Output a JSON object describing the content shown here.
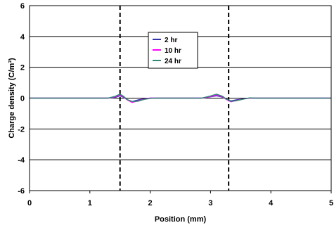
{
  "chart_data": {
    "type": "line",
    "title": "",
    "xlabel": "Position (mm)",
    "ylabel": "Charge density (C/m³)",
    "xlim": [
      0,
      5
    ],
    "ylim": [
      -6,
      6
    ],
    "xticks": [
      0,
      1,
      2,
      3,
      4,
      5
    ],
    "yticks": [
      -6,
      -4,
      -2,
      0,
      2,
      4,
      6
    ],
    "xtick_labels": [
      "0",
      "1",
      "2",
      "3",
      "4",
      "5"
    ],
    "ytick_labels": [
      "-6",
      "-4",
      "-2",
      "0",
      "2",
      "4",
      "6"
    ],
    "grid": "horizontal",
    "legend_position": "center-top",
    "vlines": [
      1.5,
      3.3
    ],
    "series": [
      {
        "name": "2 hr",
        "color": "#3333aa",
        "x": [
          0,
          1.3,
          1.42,
          1.5,
          1.56,
          1.62,
          1.7,
          1.8,
          1.9,
          2.0,
          2.1,
          2.5,
          2.85,
          3.0,
          3.1,
          3.2,
          3.26,
          3.34,
          3.42,
          3.55,
          3.65,
          3.75,
          5
        ],
        "y": [
          0,
          0,
          0.05,
          0.15,
          0.05,
          -0.1,
          -0.22,
          -0.12,
          -0.04,
          0,
          0,
          0,
          0,
          0.08,
          0.15,
          0.06,
          -0.06,
          -0.18,
          -0.12,
          -0.04,
          0,
          0,
          0
        ]
      },
      {
        "name": "10 hr",
        "color": "#ff00ff",
        "x": [
          0,
          1.3,
          1.42,
          1.5,
          1.56,
          1.62,
          1.7,
          1.8,
          1.9,
          2.0,
          2.1,
          2.5,
          2.85,
          3.0,
          3.1,
          3.2,
          3.26,
          3.34,
          3.42,
          3.55,
          3.65,
          3.75,
          5
        ],
        "y": [
          0,
          0,
          0.08,
          0.2,
          0.08,
          -0.12,
          -0.28,
          -0.18,
          -0.06,
          0,
          0,
          0,
          0,
          0.1,
          0.2,
          0.08,
          -0.08,
          -0.24,
          -0.16,
          -0.05,
          0,
          0,
          0
        ]
      },
      {
        "name": "24 hr",
        "color": "#2e8b72",
        "x": [
          0,
          1.3,
          1.42,
          1.5,
          1.56,
          1.62,
          1.7,
          1.8,
          1.9,
          2.0,
          2.1,
          2.5,
          2.85,
          3.0,
          3.1,
          3.2,
          3.26,
          3.34,
          3.42,
          3.55,
          3.65,
          3.75,
          5
        ],
        "y": [
          0,
          0,
          0.12,
          0.26,
          0.12,
          -0.1,
          -0.22,
          -0.2,
          -0.08,
          -0.02,
          0,
          0,
          0,
          0.14,
          0.26,
          0.12,
          -0.06,
          -0.2,
          -0.18,
          -0.06,
          0.02,
          0,
          0
        ]
      }
    ]
  }
}
